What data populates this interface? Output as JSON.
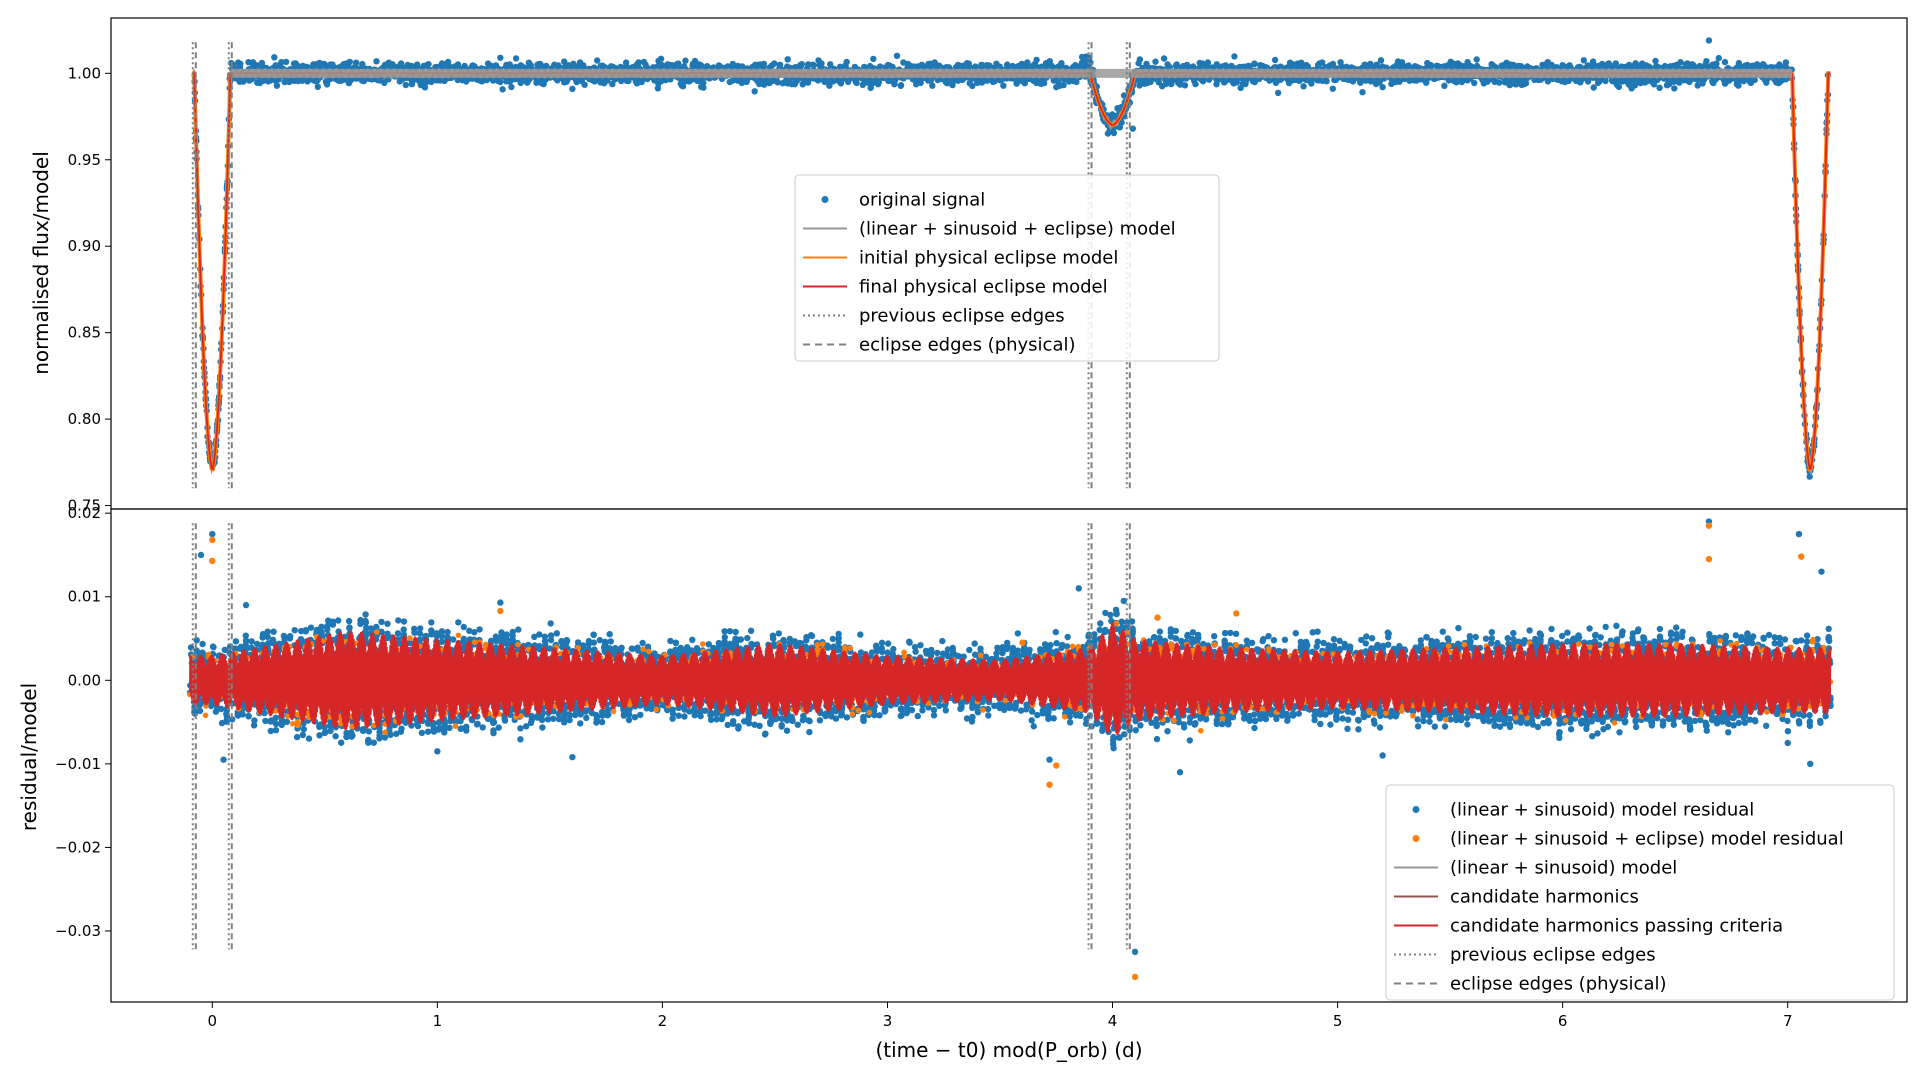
{
  "chart_data": [
    {
      "type": "scatter",
      "panel": "top",
      "ylabel": "normalised flux/model",
      "xlim": [
        -0.45,
        7.53
      ],
      "ylim": [
        0.748,
        1.032
      ],
      "yticks": [
        "0.75",
        "0.80",
        "0.85",
        "0.90",
        "0.95",
        "1.00"
      ],
      "yticks_values": [
        0.75,
        0.8,
        0.85,
        0.9,
        0.95,
        1.0
      ],
      "legend_position": "center",
      "series": [
        {
          "name": "original signal",
          "kind": "scatter",
          "color": "#1f77b4"
        },
        {
          "name": "(linear + sinusoid + eclipse) model",
          "kind": "line",
          "color": "#999999"
        },
        {
          "name": "initial physical eclipse model",
          "kind": "line",
          "color": "#ff7f0e"
        },
        {
          "name": "final physical eclipse model",
          "kind": "line",
          "color": "#d62728"
        },
        {
          "name": "previous eclipse edges",
          "kind": "dotted-vline",
          "color": "#808080"
        },
        {
          "name": "eclipse edges (physical)",
          "kind": "dashed-vline",
          "color": "#808080"
        }
      ],
      "eclipses": [
        {
          "center": 0.0,
          "half_width": 0.08,
          "min_flux": 0.77
        },
        {
          "center": 4.0,
          "half_width": 0.1,
          "min_flux": 0.97
        },
        {
          "center": 7.1,
          "half_width": 0.08,
          "min_flux": 0.77
        }
      ],
      "eclipse_edges_x": [
        -0.08,
        0.08,
        3.9,
        4.07
      ],
      "noise_amplitude": 0.003,
      "outlier_points": [
        [
          1.28,
          1.009
        ],
        [
          1.6,
          0.991
        ],
        [
          3.75,
          0.992
        ],
        [
          4.3,
          0.995
        ],
        [
          6.65,
          1.019
        ],
        [
          6.6,
          0.993
        ],
        [
          5.2,
          0.992
        ],
        [
          3.88,
          1.009
        ],
        [
          4.09,
          0.968
        ],
        [
          4.12,
          0.993
        ]
      ]
    },
    {
      "type": "scatter",
      "panel": "bottom",
      "xlabel": "(time − t0) mod(P_orb) (d)",
      "ylabel": "residual/model",
      "xlim": [
        -0.45,
        7.53
      ],
      "ylim": [
        -0.0385,
        0.0205
      ],
      "xticks": [
        "0",
        "1",
        "2",
        "3",
        "4",
        "5",
        "6",
        "7"
      ],
      "xticks_values": [
        0,
        1,
        2,
        3,
        4,
        5,
        6,
        7
      ],
      "yticks": [
        "0.02",
        "0.01",
        "0.00",
        "−0.01",
        "−0.02",
        "−0.03"
      ],
      "yticks_values": [
        0.02,
        0.01,
        0.0,
        -0.01,
        -0.02,
        -0.03
      ],
      "legend_position": "lower right",
      "series": [
        {
          "name": "(linear + sinusoid) model residual",
          "kind": "scatter",
          "color": "#1f77b4"
        },
        {
          "name": "(linear + sinusoid + eclipse) model residual",
          "kind": "scatter",
          "color": "#ff7f0e"
        },
        {
          "name": "(linear + sinusoid) model",
          "kind": "line",
          "color": "#999999"
        },
        {
          "name": "candidate harmonics",
          "kind": "line",
          "color": "#8c564b"
        },
        {
          "name": "candidate harmonics passing criteria",
          "kind": "line",
          "color": "#d62728"
        },
        {
          "name": "previous eclipse edges",
          "kind": "dotted-vline",
          "color": "#808080"
        },
        {
          "name": "eclipse edges (physical)",
          "kind": "dashed-vline",
          "color": "#808080"
        }
      ],
      "envelope": [
        [
          0,
          0.003
        ],
        [
          0.6,
          0.006
        ],
        [
          1.0,
          0.005
        ],
        [
          1.5,
          0.004
        ],
        [
          2.0,
          0.003
        ],
        [
          2.5,
          0.0045
        ],
        [
          3.0,
          0.003
        ],
        [
          3.5,
          0.0025
        ],
        [
          3.9,
          0.004
        ],
        [
          4.0,
          0.007
        ],
        [
          4.1,
          0.005
        ],
        [
          4.5,
          0.004
        ],
        [
          5.0,
          0.0035
        ],
        [
          5.5,
          0.004
        ],
        [
          6.0,
          0.0045
        ],
        [
          6.5,
          0.0045
        ],
        [
          7.0,
          0.004
        ],
        [
          7.18,
          0.004
        ]
      ],
      "eclipse_edges_x": [
        -0.08,
        0.08,
        3.9,
        4.07
      ],
      "blue_outliers": [
        [
          -0.05,
          0.015
        ],
        [
          0.0,
          0.0175
        ],
        [
          0.15,
          0.009
        ],
        [
          1.28,
          0.0093
        ],
        [
          1.0,
          -0.0085
        ],
        [
          1.6,
          -0.0092
        ],
        [
          3.65,
          -0.0055
        ],
        [
          3.85,
          0.011
        ],
        [
          3.9,
          -0.0042
        ],
        [
          4.1,
          -0.0325
        ],
        [
          4.3,
          -0.011
        ],
        [
          6.65,
          0.019
        ],
        [
          7.05,
          0.0175
        ],
        [
          7.0,
          -0.0075
        ],
        [
          7.1,
          -0.01
        ],
        [
          3.72,
          -0.0095
        ],
        [
          0.05,
          -0.0095
        ],
        [
          4.05,
          0.0095
        ],
        [
          5.2,
          -0.009
        ],
        [
          7.15,
          0.013
        ]
      ],
      "orange_outliers": [
        [
          0.0,
          0.0168
        ],
        [
          0.0,
          0.0143
        ],
        [
          3.72,
          -0.0125
        ],
        [
          4.1,
          -0.0355
        ],
        [
          4.2,
          0.0075
        ],
        [
          6.65,
          0.0185
        ],
        [
          6.65,
          0.0145
        ],
        [
          7.06,
          0.0148
        ],
        [
          1.28,
          0.0083
        ],
        [
          0.4,
          -0.0045
        ],
        [
          3.6,
          0.0045
        ],
        [
          4.55,
          0.008
        ],
        [
          3.75,
          -0.0102
        ]
      ]
    }
  ]
}
